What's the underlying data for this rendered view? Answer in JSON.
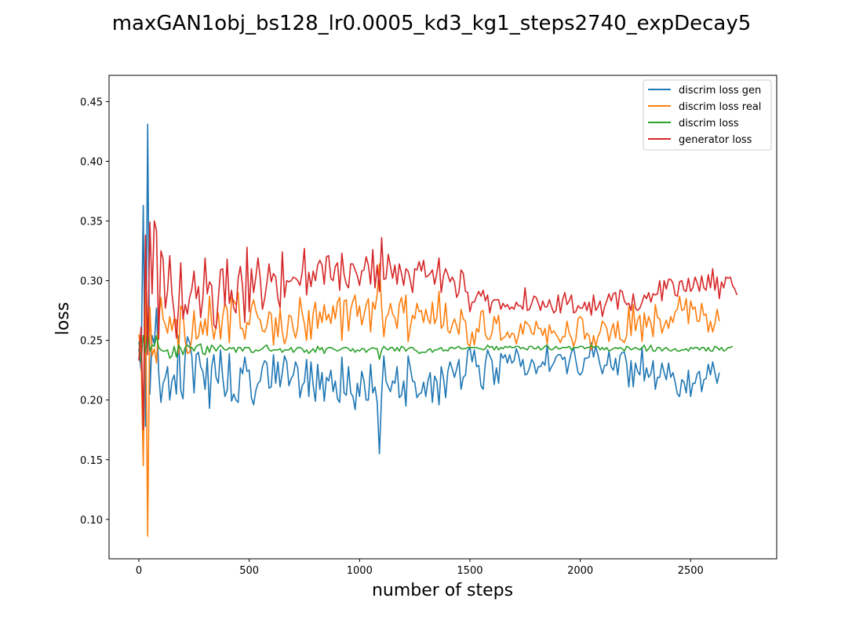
{
  "chart_data": {
    "type": "line",
    "title": "maxGAN1obj_bs128_lr0.0005_kd3_kg1_steps2740_expDecay5",
    "xlabel": "number of steps",
    "ylabel": "loss",
    "xlim": [
      -135,
      2890
    ],
    "ylim": [
      0.067,
      0.472
    ],
    "xticks": [
      0,
      500,
      1000,
      1500,
      2000,
      2500
    ],
    "yticks": [
      0.1,
      0.15,
      0.2,
      0.25,
      0.3,
      0.35,
      0.4,
      0.45
    ],
    "xtick_labels": [
      "0",
      "500",
      "1000",
      "1500",
      "2000",
      "2500"
    ],
    "ytick_labels": [
      "0.10",
      "0.15",
      "0.20",
      "0.25",
      "0.30",
      "0.35",
      "0.40",
      "0.45"
    ],
    "grid": false,
    "legend_position": "top-right",
    "x_step": 10,
    "series": [
      {
        "name": "discrim loss gen",
        "color": "#1f77b4",
        "values": [
          0.243,
          0.225,
          0.363,
          0.178,
          0.431,
          0.205,
          0.254,
          0.247,
          0.277,
          0.223,
          0.198,
          0.214,
          0.219,
          0.228,
          0.2,
          0.216,
          0.221,
          0.205,
          0.254,
          0.208,
          0.201,
          0.238,
          0.253,
          0.248,
          0.237,
          0.206,
          0.238,
          0.24,
          0.228,
          0.224,
          0.209,
          0.235,
          0.193,
          0.228,
          0.238,
          0.219,
          0.214,
          0.242,
          0.219,
          0.203,
          0.208,
          0.239,
          0.199,
          0.205,
          0.2,
          0.198,
          0.227,
          0.222,
          0.236,
          0.224,
          0.225,
          0.202,
          0.196,
          0.208,
          0.214,
          0.216,
          0.228,
          0.233,
          0.231,
          0.21,
          0.211,
          0.238,
          0.214,
          0.232,
          0.211,
          0.223,
          0.237,
          0.232,
          0.212,
          0.218,
          0.221,
          0.232,
          0.227,
          0.202,
          0.212,
          0.215,
          0.234,
          0.203,
          0.232,
          0.212,
          0.199,
          0.23,
          0.209,
          0.223,
          0.199,
          0.219,
          0.216,
          0.225,
          0.207,
          0.216,
          0.201,
          0.198,
          0.236,
          0.206,
          0.204,
          0.228,
          0.206,
          0.203,
          0.192,
          0.214,
          0.203,
          0.224,
          0.216,
          0.2,
          0.2,
          0.23,
          0.206,
          0.211,
          0.198,
          0.155,
          0.205,
          0.237,
          0.216,
          0.211,
          0.207,
          0.216,
          0.214,
          0.228,
          0.202,
          0.204,
          0.216,
          0.195,
          0.237,
          0.227,
          0.216,
          0.215,
          0.202,
          0.205,
          0.206,
          0.215,
          0.203,
          0.216,
          0.223,
          0.198,
          0.22,
          0.216,
          0.196,
          0.228,
          0.219,
          0.202,
          0.224,
          0.232,
          0.226,
          0.219,
          0.226,
          0.234,
          0.209,
          0.219,
          0.221,
          0.241,
          0.244,
          0.232,
          0.242,
          0.228,
          0.229,
          0.212,
          0.209,
          0.231,
          0.242,
          0.237,
          0.233,
          0.213,
          0.227,
          0.214,
          0.239,
          0.235,
          0.238,
          0.231,
          0.238,
          0.231,
          0.233,
          0.243,
          0.238,
          0.228,
          0.234,
          0.221,
          0.222,
          0.227,
          0.234,
          0.231,
          0.222,
          0.228,
          0.228,
          0.232,
          0.229,
          0.246,
          0.224,
          0.228,
          0.231,
          0.236,
          0.238,
          0.238,
          0.234,
          0.236,
          0.222,
          0.232,
          0.24,
          0.244,
          0.233,
          0.223,
          0.221,
          0.224,
          0.235,
          0.235,
          0.236,
          0.248,
          0.236,
          0.245,
          0.238,
          0.229,
          0.222,
          0.229,
          0.229,
          0.241,
          0.228,
          0.225,
          0.235,
          0.221,
          0.237,
          0.24,
          0.24,
          0.231,
          0.211,
          0.233,
          0.211,
          0.231,
          0.224,
          0.221,
          0.244,
          0.216,
          0.227,
          0.219,
          0.222,
          0.233,
          0.209,
          0.219,
          0.219,
          0.231,
          0.223,
          0.217,
          0.231,
          0.219,
          0.223,
          0.215,
          0.205,
          0.203,
          0.217,
          0.215,
          0.206,
          0.225,
          0.203,
          0.214,
          0.214,
          0.222,
          0.224,
          0.207,
          0.217,
          0.218,
          0.23,
          0.221,
          0.232,
          0.223,
          0.214,
          0.223
        ]
      },
      {
        "name": "discrim loss real",
        "color": "#ff7f0e",
        "values": [
          0.255,
          0.239,
          0.145,
          0.303,
          0.086,
          0.278,
          0.237,
          0.243,
          0.231,
          0.266,
          0.286,
          0.268,
          0.263,
          0.256,
          0.27,
          0.258,
          0.268,
          0.267,
          0.239,
          0.279,
          0.274,
          0.249,
          0.239,
          0.24,
          0.252,
          0.275,
          0.251,
          0.253,
          0.266,
          0.255,
          0.268,
          0.254,
          0.287,
          0.264,
          0.251,
          0.262,
          0.273,
          0.251,
          0.27,
          0.281,
          0.276,
          0.248,
          0.286,
          0.283,
          0.28,
          0.29,
          0.26,
          0.26,
          0.251,
          0.265,
          0.263,
          0.278,
          0.284,
          0.275,
          0.269,
          0.267,
          0.258,
          0.257,
          0.262,
          0.274,
          0.272,
          0.246,
          0.269,
          0.253,
          0.276,
          0.257,
          0.247,
          0.253,
          0.271,
          0.27,
          0.259,
          0.252,
          0.261,
          0.286,
          0.273,
          0.264,
          0.25,
          0.275,
          0.251,
          0.273,
          0.282,
          0.26,
          0.274,
          0.265,
          0.28,
          0.267,
          0.272,
          0.264,
          0.279,
          0.268,
          0.282,
          0.286,
          0.25,
          0.283,
          0.284,
          0.258,
          0.276,
          0.283,
          0.288,
          0.27,
          0.279,
          0.263,
          0.271,
          0.28,
          0.285,
          0.257,
          0.282,
          0.276,
          0.289,
          0.314,
          0.278,
          0.253,
          0.269,
          0.272,
          0.281,
          0.272,
          0.269,
          0.26,
          0.28,
          0.286,
          0.273,
          0.288,
          0.249,
          0.261,
          0.271,
          0.268,
          0.281,
          0.274,
          0.275,
          0.265,
          0.276,
          0.268,
          0.264,
          0.282,
          0.264,
          0.269,
          0.291,
          0.26,
          0.263,
          0.281,
          0.258,
          0.256,
          0.263,
          0.268,
          0.262,
          0.255,
          0.276,
          0.268,
          0.266,
          0.247,
          0.245,
          0.257,
          0.246,
          0.26,
          0.257,
          0.274,
          0.275,
          0.255,
          0.251,
          0.251,
          0.256,
          0.27,
          0.264,
          0.271,
          0.25,
          0.252,
          0.253,
          0.257,
          0.252,
          0.256,
          0.255,
          0.247,
          0.254,
          0.264,
          0.255,
          0.266,
          0.264,
          0.262,
          0.256,
          0.255,
          0.266,
          0.26,
          0.26,
          0.254,
          0.26,
          0.247,
          0.263,
          0.256,
          0.258,
          0.255,
          0.252,
          0.248,
          0.253,
          0.253,
          0.266,
          0.256,
          0.252,
          0.245,
          0.251,
          0.268,
          0.27,
          0.268,
          0.251,
          0.256,
          0.254,
          0.242,
          0.254,
          0.245,
          0.253,
          0.257,
          0.266,
          0.264,
          0.26,
          0.249,
          0.258,
          0.264,
          0.252,
          0.266,
          0.251,
          0.25,
          0.248,
          0.254,
          0.278,
          0.254,
          0.28,
          0.258,
          0.267,
          0.271,
          0.249,
          0.273,
          0.261,
          0.27,
          0.264,
          0.253,
          0.28,
          0.269,
          0.268,
          0.256,
          0.262,
          0.267,
          0.26,
          0.27,
          0.265,
          0.274,
          0.276,
          0.287,
          0.275,
          0.276,
          0.285,
          0.264,
          0.283,
          0.276,
          0.278,
          0.266,
          0.266,
          0.281,
          0.271,
          0.272,
          0.257,
          0.266,
          0.257,
          0.264,
          0.276,
          0.266
        ]
      },
      {
        "name": "discrim loss",
        "color": "#2ca02c",
        "values": [
          0.249,
          0.232,
          0.254,
          0.24,
          0.259,
          0.241,
          0.246,
          0.245,
          0.254,
          0.244,
          0.242,
          0.241,
          0.241,
          0.242,
          0.235,
          0.237,
          0.245,
          0.236,
          0.246,
          0.243,
          0.238,
          0.244,
          0.246,
          0.244,
          0.244,
          0.241,
          0.245,
          0.246,
          0.247,
          0.239,
          0.238,
          0.245,
          0.24,
          0.246,
          0.244,
          0.241,
          0.244,
          0.246,
          0.244,
          0.242,
          0.242,
          0.244,
          0.243,
          0.244,
          0.24,
          0.244,
          0.244,
          0.241,
          0.244,
          0.244,
          0.244,
          0.24,
          0.24,
          0.242,
          0.241,
          0.242,
          0.243,
          0.245,
          0.246,
          0.242,
          0.241,
          0.242,
          0.242,
          0.242,
          0.243,
          0.24,
          0.242,
          0.242,
          0.242,
          0.244,
          0.24,
          0.242,
          0.244,
          0.244,
          0.243,
          0.24,
          0.242,
          0.239,
          0.241,
          0.243,
          0.24,
          0.245,
          0.242,
          0.244,
          0.239,
          0.243,
          0.244,
          0.244,
          0.243,
          0.242,
          0.241,
          0.242,
          0.243,
          0.244,
          0.244,
          0.243,
          0.241,
          0.243,
          0.24,
          0.242,
          0.241,
          0.243,
          0.243,
          0.24,
          0.242,
          0.243,
          0.244,
          0.243,
          0.243,
          0.234,
          0.242,
          0.245,
          0.243,
          0.242,
          0.244,
          0.244,
          0.241,
          0.244,
          0.241,
          0.245,
          0.244,
          0.241,
          0.243,
          0.244,
          0.244,
          0.242,
          0.241,
          0.239,
          0.24,
          0.24,
          0.24,
          0.242,
          0.243,
          0.24,
          0.242,
          0.242,
          0.243,
          0.244,
          0.241,
          0.242,
          0.241,
          0.244,
          0.244,
          0.243,
          0.244,
          0.245,
          0.243,
          0.243,
          0.243,
          0.244,
          0.244,
          0.244,
          0.244,
          0.244,
          0.243,
          0.243,
          0.242,
          0.243,
          0.246,
          0.244,
          0.245,
          0.242,
          0.245,
          0.242,
          0.244,
          0.243,
          0.245,
          0.244,
          0.245,
          0.244,
          0.244,
          0.245,
          0.245,
          0.243,
          0.244,
          0.243,
          0.242,
          0.245,
          0.245,
          0.243,
          0.243,
          0.245,
          0.242,
          0.243,
          0.245,
          0.246,
          0.243,
          0.242,
          0.243,
          0.245,
          0.243,
          0.243,
          0.244,
          0.244,
          0.244,
          0.245,
          0.242,
          0.244,
          0.244,
          0.244,
          0.245,
          0.245,
          0.243,
          0.244,
          0.244,
          0.246,
          0.244,
          0.245,
          0.245,
          0.242,
          0.244,
          0.242,
          0.244,
          0.241,
          0.242,
          0.243,
          0.244,
          0.243,
          0.244,
          0.243,
          0.241,
          0.245,
          0.244,
          0.242,
          0.243,
          0.244,
          0.243,
          0.242,
          0.244,
          0.246,
          0.241,
          0.243,
          0.246,
          0.241,
          0.241,
          0.244,
          0.244,
          0.241,
          0.243,
          0.244,
          0.242,
          0.241,
          0.242,
          0.243,
          0.241,
          0.241,
          0.242,
          0.242,
          0.243,
          0.241,
          0.244,
          0.243,
          0.244,
          0.244,
          0.242,
          0.244,
          0.244,
          0.241,
          0.244,
          0.241,
          0.241,
          0.245,
          0.244,
          0.242,
          0.244,
          0.241,
          0.242,
          0.244,
          0.244,
          0.245
        ]
      },
      {
        "name": "generator loss",
        "color": "#d62728",
        "values": [
          0.233,
          0.261,
          0.175,
          0.338,
          0.238,
          0.349,
          0.289,
          0.35,
          0.342,
          0.251,
          0.325,
          0.318,
          0.277,
          0.291,
          0.321,
          0.289,
          0.273,
          0.252,
          0.278,
          0.315,
          0.268,
          0.28,
          0.272,
          0.286,
          0.293,
          0.308,
          0.285,
          0.295,
          0.269,
          0.285,
          0.319,
          0.289,
          0.299,
          0.296,
          0.263,
          0.26,
          0.285,
          0.309,
          0.31,
          0.279,
          0.318,
          0.281,
          0.292,
          0.277,
          0.273,
          0.302,
          0.312,
          0.295,
          0.265,
          0.328,
          0.274,
          0.31,
          0.29,
          0.303,
          0.319,
          0.302,
          0.276,
          0.285,
          0.298,
          0.314,
          0.299,
          0.306,
          0.303,
          0.285,
          0.277,
          0.324,
          0.286,
          0.3,
          0.299,
          0.3,
          0.303,
          0.302,
          0.3,
          0.296,
          0.307,
          0.327,
          0.288,
          0.307,
          0.295,
          0.308,
          0.3,
          0.313,
          0.317,
          0.313,
          0.297,
          0.32,
          0.321,
          0.302,
          0.3,
          0.312,
          0.315,
          0.292,
          0.323,
          0.305,
          0.297,
          0.294,
          0.314,
          0.314,
          0.309,
          0.304,
          0.296,
          0.308,
          0.309,
          0.32,
          0.313,
          0.297,
          0.326,
          0.294,
          0.313,
          0.291,
          0.336,
          0.301,
          0.302,
          0.322,
          0.312,
          0.302,
          0.313,
          0.297,
          0.314,
          0.306,
          0.296,
          0.31,
          0.308,
          0.3,
          0.29,
          0.31,
          0.309,
          0.316,
          0.308,
          0.317,
          0.303,
          0.304,
          0.306,
          0.309,
          0.297,
          0.306,
          0.319,
          0.29,
          0.304,
          0.31,
          0.305,
          0.299,
          0.303,
          0.299,
          0.286,
          0.29,
          0.309,
          0.306,
          0.291,
          0.29,
          0.274,
          0.282,
          0.282,
          0.287,
          0.291,
          0.287,
          0.292,
          0.283,
          0.288,
          0.273,
          0.282,
          0.284,
          0.284,
          0.284,
          0.276,
          0.281,
          0.278,
          0.28,
          0.276,
          0.278,
          0.276,
          0.282,
          0.279,
          0.279,
          0.276,
          0.294,
          0.275,
          0.276,
          0.281,
          0.287,
          0.286,
          0.281,
          0.275,
          0.283,
          0.278,
          0.278,
          0.284,
          0.278,
          0.273,
          0.275,
          0.288,
          0.273,
          0.284,
          0.29,
          0.28,
          0.283,
          0.288,
          0.273,
          0.274,
          0.279,
          0.277,
          0.277,
          0.282,
          0.275,
          0.282,
          0.271,
          0.288,
          0.275,
          0.278,
          0.283,
          0.27,
          0.278,
          0.283,
          0.289,
          0.283,
          0.289,
          0.29,
          0.276,
          0.292,
          0.291,
          0.283,
          0.28,
          0.281,
          0.275,
          0.289,
          0.277,
          0.275,
          0.277,
          0.282,
          0.288,
          0.285,
          0.29,
          0.282,
          0.289,
          0.288,
          0.289,
          0.3,
          0.283,
          0.3,
          0.293,
          0.301,
          0.301,
          0.298,
          0.288,
          0.287,
          0.299,
          0.3,
          0.292,
          0.291,
          0.302,
          0.291,
          0.294,
          0.303,
          0.298,
          0.291,
          0.304,
          0.294,
          0.292,
          0.305,
          0.294,
          0.31,
          0.292,
          0.303,
          0.285,
          0.299,
          0.294,
          0.303,
          0.302,
          0.303,
          0.296,
          0.293,
          0.288
        ]
      }
    ]
  }
}
